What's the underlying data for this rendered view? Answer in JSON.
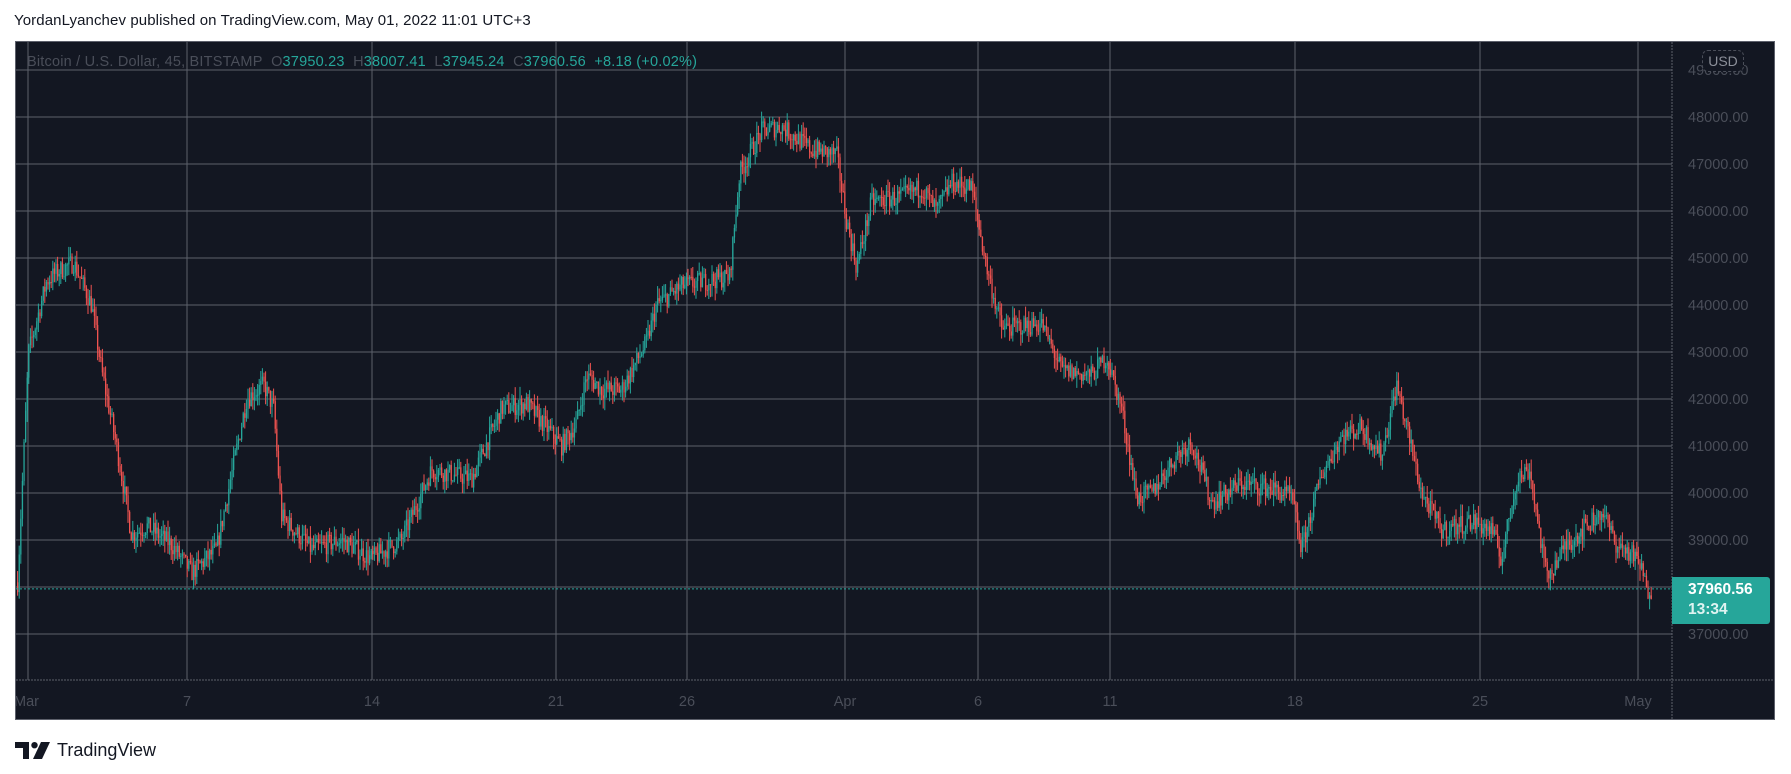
{
  "header": {
    "publish_line": "YordanLyanchev published on TradingView.com, May 01, 2022 11:01 UTC+3"
  },
  "legend": {
    "symbol": "Bitcoin / U.S. Dollar, 45, BITSTAMP",
    "open_label": "O",
    "open": "37950.23",
    "high_label": "H",
    "high": "38007.41",
    "low_label": "L",
    "low": "37945.24",
    "close_label": "C",
    "close": "37960.56",
    "change": "+8.18 (+0.02%)"
  },
  "price_axis": {
    "currency_badge": "USD",
    "current_price": "37960.56",
    "countdown": "13:34"
  },
  "footer": {
    "brand": "TradingView"
  },
  "colors": {
    "background": "#131722",
    "grid": "#5d606b",
    "bull": "#26a69a",
    "bear": "#ef5350",
    "axis_text": "#4a4e59",
    "price_tag": "#26a69a"
  },
  "chart_data": {
    "type": "candlestick",
    "title": "Bitcoin / U.S. Dollar, 45, BITSTAMP",
    "interval": "45 minutes",
    "exchange": "BITSTAMP",
    "currency": "USD",
    "ylim": [
      36000,
      49000
    ],
    "y_ticks": [
      37000,
      38000,
      39000,
      40000,
      41000,
      42000,
      43000,
      44000,
      45000,
      46000,
      47000,
      48000,
      49000
    ],
    "y_tick_labels": [
      "37000.00",
      "38000.00",
      "39000.00",
      "40000.00",
      "41000.00",
      "42000.00",
      "43000.00",
      "44000.00",
      "45000.00",
      "46000.00",
      "47000.00",
      "48000.00",
      "49000.00"
    ],
    "x_tick_labels": [
      "Mar",
      "7",
      "14",
      "21",
      "26",
      "Apr",
      "6",
      "11",
      "18",
      "25",
      "May"
    ],
    "grid": true,
    "last": {
      "open": 37950.23,
      "high": 38007.41,
      "low": 37945.24,
      "close": 37960.56,
      "change": 8.18,
      "change_pct": 0.02
    },
    "approx_close_path": {
      "x_dates": [
        "Feb 28",
        "Mar 1",
        "Mar 2",
        "Mar 3",
        "Mar 4",
        "Mar 5",
        "Mar 6",
        "Mar 7",
        "Mar 8",
        "Mar 9",
        "Mar 10",
        "Mar 11",
        "Mar 12",
        "Mar 13",
        "Mar 14",
        "Mar 15",
        "Mar 16",
        "Mar 17",
        "Mar 18",
        "Mar 19",
        "Mar 20",
        "Mar 21",
        "Mar 22",
        "Mar 23",
        "Mar 24",
        "Mar 25",
        "Mar 26",
        "Mar 27",
        "Mar 28",
        "Mar 29",
        "Mar 30",
        "Mar 31",
        "Apr 1",
        "Apr 2",
        "Apr 3",
        "Apr 4",
        "Apr 5",
        "Apr 6",
        "Apr 7",
        "Apr 8",
        "Apr 9",
        "Apr 10",
        "Apr 11",
        "Apr 12",
        "Apr 13",
        "Apr 14",
        "Apr 15",
        "Apr 16",
        "Apr 17",
        "Apr 18",
        "Apr 19",
        "Apr 20",
        "Apr 21",
        "Apr 22",
        "Apr 23",
        "Apr 24",
        "Apr 25",
        "Apr 26",
        "Apr 27",
        "Apr 28",
        "Apr 29",
        "Apr 30",
        "May 1"
      ],
      "values": [
        38100,
        43200,
        44400,
        43900,
        42000,
        39200,
        38800,
        38200,
        38700,
        41900,
        39400,
        38900,
        38900,
        38600,
        39500,
        39300,
        40800,
        40800,
        41800,
        42200,
        41300,
        41000,
        42600,
        42400,
        43900,
        44300,
        44500,
        46800,
        47100,
        47400,
        47100,
        45700,
        46200,
        46400,
        46500,
        46600,
        45500,
        43300,
        43600,
        42500,
        42700,
        42300,
        39800,
        40200,
        41100,
        40200,
        40300,
        40200,
        39800,
        40700,
        41300,
        41300,
        40500,
        39700,
        39600,
        39400,
        40500,
        38300,
        39200,
        39700,
        38800,
        38400,
        37960
      ]
    }
  }
}
